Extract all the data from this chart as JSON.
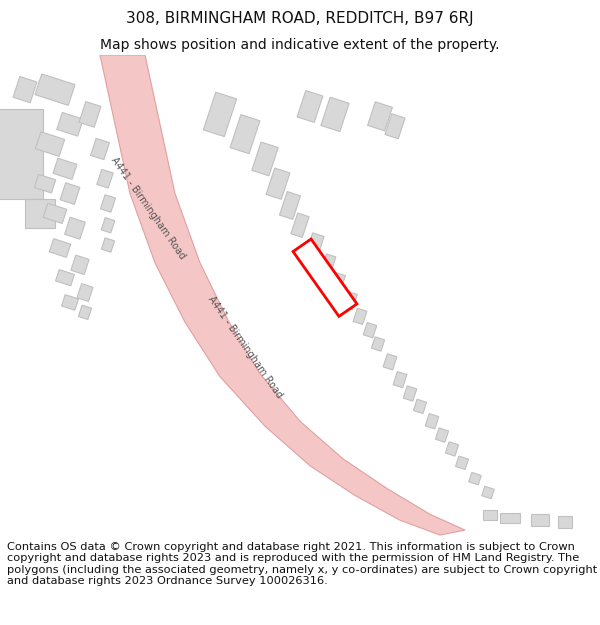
{
  "title": "308, BIRMINGHAM ROAD, REDDITCH, B97 6RJ",
  "subtitle": "Map shows position and indicative extent of the property.",
  "footer": "Contains OS data © Crown copyright and database right 2021. This information is subject to Crown copyright and database rights 2023 and is reproduced with the permission of HM Land Registry. The polygons (including the associated geometry, namely x, y co-ordinates) are subject to Crown copyright and database rights 2023 Ordnance Survey 100026316.",
  "bg_color": "#ffffff",
  "map_bg": "#ffffff",
  "road_fill": "#f5c6c6",
  "road_edge": "#e0a0a0",
  "building_color": "#d8d8d8",
  "building_edge": "#c0c0c0",
  "plot_fill": "#ffffff",
  "plot_edge": "#ff0000",
  "road_label": "A441 - Birmingham Road",
  "title_fontsize": 11,
  "subtitle_fontsize": 10,
  "footer_fontsize": 8.2,
  "road_label_color": "#555555",
  "road_label_fontsize": 7.0
}
